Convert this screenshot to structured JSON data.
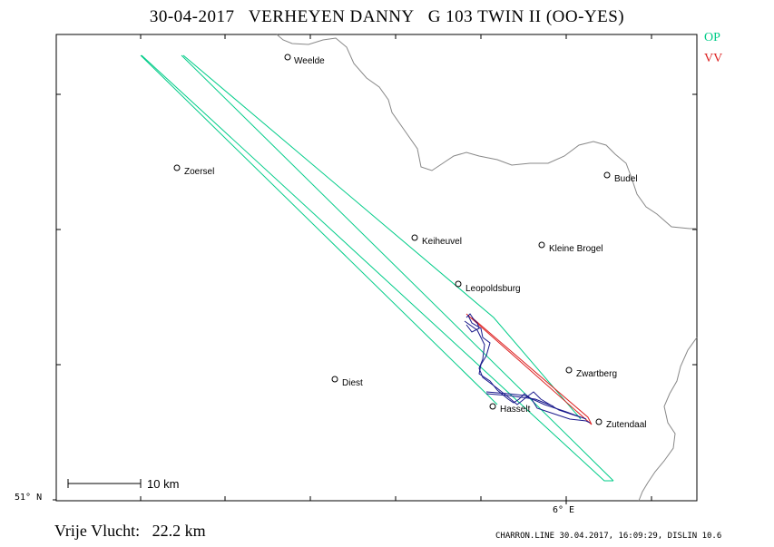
{
  "title": "30-04-2017   VERHEYEN DANNY   G 103 TWIN II (OO-YES)",
  "legend": {
    "op_label": "OP",
    "vv_label": "VV",
    "op_color": "#00cc88",
    "vv_color": "#dd2222",
    "track_color": "#1a1a8c"
  },
  "scale_bar": {
    "label": "10 km"
  },
  "axis": {
    "lat_label": "51° N",
    "lon_label": "6° E"
  },
  "free_flight": {
    "label": "Vrije Vlucht:",
    "value": "22.2 km"
  },
  "footer": "CHARRON.LINE 30.04.2017, 16:09:29, DISLIN 10.6",
  "cities": [
    {
      "name": "Weelde"
    },
    {
      "name": "Zoersel"
    },
    {
      "name": "Budel"
    },
    {
      "name": "Keiheuvel"
    },
    {
      "name": "Kleine Brogel"
    },
    {
      "name": "Leopoldsburg"
    },
    {
      "name": "Zwartberg"
    },
    {
      "name": "Diest"
    },
    {
      "name": "Hasselt"
    },
    {
      "name": "Zutendaal"
    }
  ]
}
